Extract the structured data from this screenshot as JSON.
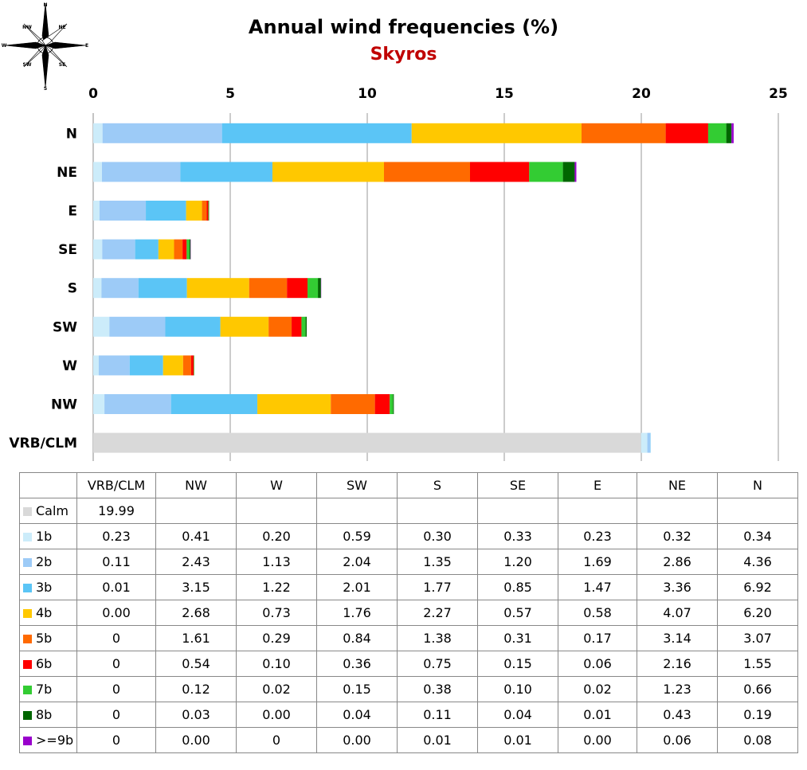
{
  "chart_data": {
    "type": "bar",
    "orientation": "horizontal",
    "stacked": true,
    "title": "Annual wind frequencies (%)",
    "subtitle": "Skyros",
    "xlim": [
      0,
      25
    ],
    "xticks": [
      "0",
      "5",
      "10",
      "15",
      "20",
      "25"
    ],
    "grid": true,
    "categories": [
      "N",
      "NE",
      "E",
      "SE",
      "S",
      "SW",
      "W",
      "NW",
      "VRB/CLM"
    ],
    "series": [
      {
        "name": "Calm",
        "color": "#d9d9d9",
        "values": [
          0,
          0,
          0,
          0,
          0,
          0,
          0,
          0,
          19.99
        ]
      },
      {
        "name": "1b",
        "color": "#ccecfa",
        "values": [
          0.34,
          0.32,
          0.23,
          0.33,
          0.3,
          0.59,
          0.2,
          0.41,
          0.23
        ]
      },
      {
        "name": "2b",
        "color": "#9dcbf7",
        "values": [
          4.36,
          2.86,
          1.69,
          1.2,
          1.35,
          2.04,
          1.13,
          2.43,
          0.11
        ]
      },
      {
        "name": "3b",
        "color": "#5bc5f6",
        "values": [
          6.92,
          3.36,
          1.47,
          0.85,
          1.77,
          2.01,
          1.22,
          3.15,
          0.01
        ]
      },
      {
        "name": "4b",
        "color": "#ffc800",
        "values": [
          6.2,
          4.07,
          0.58,
          0.57,
          2.27,
          1.76,
          0.73,
          2.68,
          0.0
        ]
      },
      {
        "name": "5b",
        "color": "#ff6a00",
        "values": [
          3.07,
          3.14,
          0.17,
          0.31,
          1.38,
          0.84,
          0.29,
          1.61,
          0
        ]
      },
      {
        "name": "6b",
        "color": "#ff0000",
        "values": [
          1.55,
          2.16,
          0.06,
          0.15,
          0.75,
          0.36,
          0.1,
          0.54,
          0
        ]
      },
      {
        "name": "7b",
        "color": "#33cc33",
        "values": [
          0.66,
          1.23,
          0.02,
          0.1,
          0.38,
          0.15,
          0.02,
          0.12,
          0
        ]
      },
      {
        "name": "8b",
        "color": "#006600",
        "values": [
          0.19,
          0.43,
          0.01,
          0.04,
          0.11,
          0.04,
          0.0,
          0.03,
          0
        ]
      },
      {
        "name": ">=9b",
        "color": "#9900cc",
        "values": [
          0.08,
          0.06,
          0.0,
          0.01,
          0.01,
          0.0,
          0,
          0.0,
          0
        ]
      }
    ]
  },
  "table": {
    "headers": [
      "",
      "VRB/CLM",
      "NW",
      "W",
      "SW",
      "S",
      "SE",
      "E",
      "NE",
      "N"
    ],
    "rows": [
      {
        "label": "Calm",
        "color": "#d9d9d9",
        "cells": [
          "19.99",
          "",
          "",
          "",
          "",
          "",
          "",
          "",
          ""
        ]
      },
      {
        "label": "1b",
        "color": "#ccecfa",
        "cells": [
          "0.23",
          "0.41",
          "0.20",
          "0.59",
          "0.30",
          "0.33",
          "0.23",
          "0.32",
          "0.34"
        ]
      },
      {
        "label": "2b",
        "color": "#9dcbf7",
        "cells": [
          "0.11",
          "2.43",
          "1.13",
          "2.04",
          "1.35",
          "1.20",
          "1.69",
          "2.86",
          "4.36"
        ]
      },
      {
        "label": "3b",
        "color": "#5bc5f6",
        "cells": [
          "0.01",
          "3.15",
          "1.22",
          "2.01",
          "1.77",
          "0.85",
          "1.47",
          "3.36",
          "6.92"
        ]
      },
      {
        "label": "4b",
        "color": "#ffc800",
        "cells": [
          "0.00",
          "2.68",
          "0.73",
          "1.76",
          "2.27",
          "0.57",
          "0.58",
          "4.07",
          "6.20"
        ]
      },
      {
        "label": "5b",
        "color": "#ff6a00",
        "cells": [
          "0",
          "1.61",
          "0.29",
          "0.84",
          "1.38",
          "0.31",
          "0.17",
          "3.14",
          "3.07"
        ]
      },
      {
        "label": "6b",
        "color": "#ff0000",
        "cells": [
          "0",
          "0.54",
          "0.10",
          "0.36",
          "0.75",
          "0.15",
          "0.06",
          "2.16",
          "1.55"
        ]
      },
      {
        "label": "7b",
        "color": "#33cc33",
        "cells": [
          "0",
          "0.12",
          "0.02",
          "0.15",
          "0.38",
          "0.10",
          "0.02",
          "1.23",
          "0.66"
        ]
      },
      {
        "label": "8b",
        "color": "#006600",
        "cells": [
          "0",
          "0.03",
          "0.00",
          "0.04",
          "0.11",
          "0.04",
          "0.01",
          "0.43",
          "0.19"
        ]
      },
      {
        "label": ">=9b",
        "color": "#9900cc",
        "cells": [
          "0",
          "0.00",
          "0",
          "0.00",
          "0.01",
          "0.01",
          "0.00",
          "0.06",
          "0.08"
        ]
      }
    ]
  },
  "compass": {
    "n": "N",
    "ne": "NE",
    "e": "E",
    "se": "SE",
    "s": "S",
    "sw": "SW",
    "w": "W",
    "nw": "NW"
  }
}
